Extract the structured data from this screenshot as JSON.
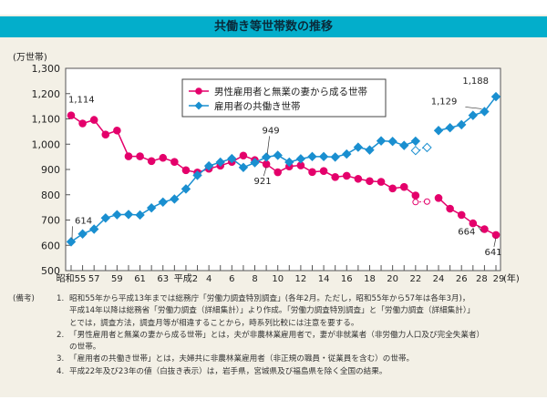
{
  "title": "共働き等世帯数の推移",
  "chart_data": {
    "type": "line",
    "title": "共働き等世帯数の推移",
    "ylabel": "(万世帯)",
    "xlabel": "(年)",
    "ylim": [
      500,
      1300
    ],
    "yticks": [
      "500",
      "600",
      "700",
      "800",
      "900",
      "1,000",
      "1,100",
      "1,200",
      "1,300"
    ],
    "x": [
      1980,
      1981,
      1982,
      1983,
      1984,
      1985,
      1986,
      1987,
      1988,
      1989,
      1990,
      1991,
      1992,
      1993,
      1994,
      1995,
      1996,
      1997,
      1998,
      1999,
      2000,
      2001,
      2002,
      2003,
      2004,
      2005,
      2006,
      2007,
      2008,
      2009,
      2010,
      2011,
      2012,
      2013,
      2014,
      2015,
      2016,
      2017
    ],
    "xtick_labels": [
      {
        "x": 1980,
        "label": "昭和55"
      },
      {
        "x": 1982,
        "label": "57"
      },
      {
        "x": 1984,
        "label": "59"
      },
      {
        "x": 1986,
        "label": "61"
      },
      {
        "x": 1988,
        "label": "63"
      },
      {
        "x": 1990,
        "label": "平成2"
      },
      {
        "x": 1992,
        "label": "4"
      },
      {
        "x": 1994,
        "label": "6"
      },
      {
        "x": 1996,
        "label": "8"
      },
      {
        "x": 1998,
        "label": "10"
      },
      {
        "x": 2000,
        "label": "12"
      },
      {
        "x": 2002,
        "label": "14"
      },
      {
        "x": 2004,
        "label": "16"
      },
      {
        "x": 2006,
        "label": "18"
      },
      {
        "x": 2008,
        "label": "20"
      },
      {
        "x": 2010,
        "label": "22"
      },
      {
        "x": 2012,
        "label": "24"
      },
      {
        "x": 2014,
        "label": "26"
      },
      {
        "x": 2016,
        "label": "28"
      },
      {
        "x": 2017,
        "label": "29"
      }
    ],
    "legend_position": "top-center",
    "series": [
      {
        "name": "男性雇用者と無業の妻から成る世帯",
        "color": "#e4006b",
        "marker": "circle",
        "values": [
          1114,
          1082,
          1096,
          1038,
          1054,
          952,
          952,
          933,
          946,
          930,
          897,
          888,
          903,
          915,
          930,
          955,
          937,
          921,
          889,
          912,
          916,
          890,
          894,
          870,
          875,
          863,
          854,
          851,
          825,
          831,
          797,
          null,
          787,
          745,
          720,
          687,
          664,
          641
        ],
        "hollow_points": [
          {
            "x": 2010,
            "y": 771
          },
          {
            "x": 2011,
            "y": 773
          }
        ]
      },
      {
        "name": "雇用者の共働き世帯",
        "color": "#1a8fd0",
        "marker": "diamond",
        "values": [
          614,
          645,
          664,
          708,
          721,
          722,
          720,
          748,
          771,
          783,
          823,
          877,
          914,
          929,
          943,
          908,
          927,
          949,
          956,
          929,
          942,
          951,
          951,
          949,
          961,
          988,
          977,
          1013,
          1011,
          995,
          1012,
          null,
          1054,
          1065,
          1077,
          1114,
          1129,
          1188
        ],
        "hollow_points": [
          {
            "x": 2010,
            "y": 975
          },
          {
            "x": 2011,
            "y": 987
          }
        ]
      }
    ],
    "annotations": [
      {
        "x": 1980,
        "y": 1114,
        "label": "1,114"
      },
      {
        "x": 1980,
        "y": 614,
        "label": "614"
      },
      {
        "x": 1997,
        "y": 949,
        "label": "949"
      },
      {
        "x": 1997,
        "y": 921,
        "label": "921"
      },
      {
        "x": 2016,
        "y": 1129,
        "label": "1,129"
      },
      {
        "x": 2017,
        "y": 1188,
        "label": "1,188"
      },
      {
        "x": 2016,
        "y": 664,
        "label": "664"
      },
      {
        "x": 2017,
        "y": 641,
        "label": "641"
      }
    ]
  },
  "notes": {
    "lead": "(備考)",
    "items": [
      {
        "num": "1.",
        "lines": [
          "昭和55年から平成13年までは総務庁「労働力調査特別調査」(各年2月。ただし，昭和55年から57年は各年3月)，",
          "平成14年以降は総務省「労働力調査（詳細集計）」より作成。「労働力調査特別調査」と「労働力調査（詳細集計）」",
          "とでは，調査方法，調査月等が相違することから，時系列比較には注意を要する。"
        ]
      },
      {
        "num": "2.",
        "lines": [
          "「男性雇用者と無業の妻から成る世帯」とは，夫が非農林業雇用者で，妻が非就業者（非労働力人口及び完全失業者）",
          "の世帯。"
        ]
      },
      {
        "num": "3.",
        "lines": [
          "「雇用者の共働き世帯」とは，夫婦共に非農林業雇用者（非正規の職員・従業員を含む）の世帯。"
        ]
      },
      {
        "num": "4.",
        "lines": [
          "平成22年及び23年の値（白抜き表示）は，岩手県，宮城県及び福島県を除く全国の結果。"
        ]
      }
    ]
  }
}
